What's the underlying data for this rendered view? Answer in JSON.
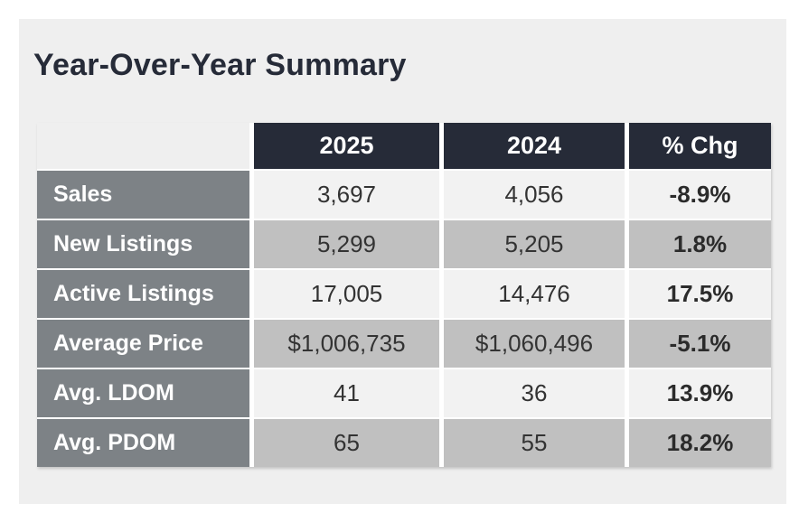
{
  "title": "Year-Over-Year Summary",
  "table": {
    "columns": [
      "2025",
      "2024",
      "% Chg"
    ],
    "rows": [
      {
        "label": "Sales",
        "v2025": "3,697",
        "v2024": "4,056",
        "chg": "-8.9%"
      },
      {
        "label": "New Listings",
        "v2025": "5,299",
        "v2024": "5,205",
        "chg": "1.8%"
      },
      {
        "label": "Active Listings",
        "v2025": "17,005",
        "v2024": "14,476",
        "chg": "17.5%"
      },
      {
        "label": "Average Price",
        "v2025": "$1,006,735",
        "v2024": "$1,060,496",
        "chg": "-5.1%"
      },
      {
        "label": "Avg. LDOM",
        "v2025": "41",
        "v2024": "36",
        "chg": "13.9%"
      },
      {
        "label": "Avg. PDOM",
        "v2025": "65",
        "v2024": "55",
        "chg": "18.2%"
      }
    ]
  },
  "colors": {
    "header_bg": "#262b38",
    "row_label_bg": "#7d8286",
    "row_light_bg": "#f2f2f2",
    "row_gray_bg": "#c0c0c0",
    "panel_bg": "#efefef",
    "title_color": "#262b38",
    "header_text": "#ffffff",
    "value_text": "#333333"
  },
  "chart_data": {
    "type": "table",
    "title": "Year-Over-Year Summary",
    "columns": [
      "2025",
      "2024",
      "% Chg"
    ],
    "metrics": [
      "Sales",
      "New Listings",
      "Active Listings",
      "Average Price",
      "Avg. LDOM",
      "Avg. PDOM"
    ],
    "series": [
      {
        "name": "2025",
        "values": [
          3697,
          5299,
          17005,
          1006735,
          41,
          65
        ]
      },
      {
        "name": "2024",
        "values": [
          4056,
          5205,
          14476,
          1060496,
          36,
          55
        ]
      },
      {
        "name": "% Chg",
        "values": [
          -8.9,
          1.8,
          17.5,
          -5.1,
          13.9,
          18.2
        ]
      }
    ]
  }
}
